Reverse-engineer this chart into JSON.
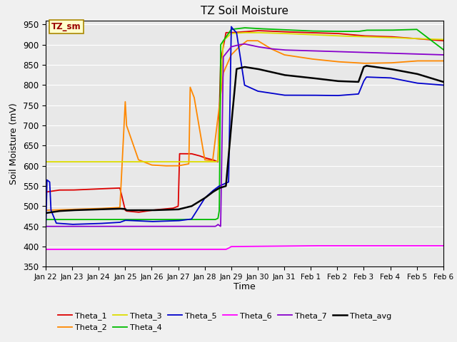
{
  "title": "TZ Soil Moisture",
  "xlabel": "Time",
  "ylabel": "Soil Moisture (mV)",
  "ylim": [
    350,
    960
  ],
  "yticks": [
    350,
    400,
    450,
    500,
    550,
    600,
    650,
    700,
    750,
    800,
    850,
    900,
    950
  ],
  "annotation_box": "TZ_sm",
  "series_colors": {
    "Theta_1": "#dd0000",
    "Theta_2": "#ff8800",
    "Theta_3": "#dddd00",
    "Theta_4": "#00bb00",
    "Theta_5": "#0000cc",
    "Theta_6": "#ff00ff",
    "Theta_7": "#8800cc",
    "Theta_avg": "#000000"
  },
  "background_color": "#e8e8e8",
  "grid_color": "#ffffff",
  "fig_bg": "#f0f0f0"
}
